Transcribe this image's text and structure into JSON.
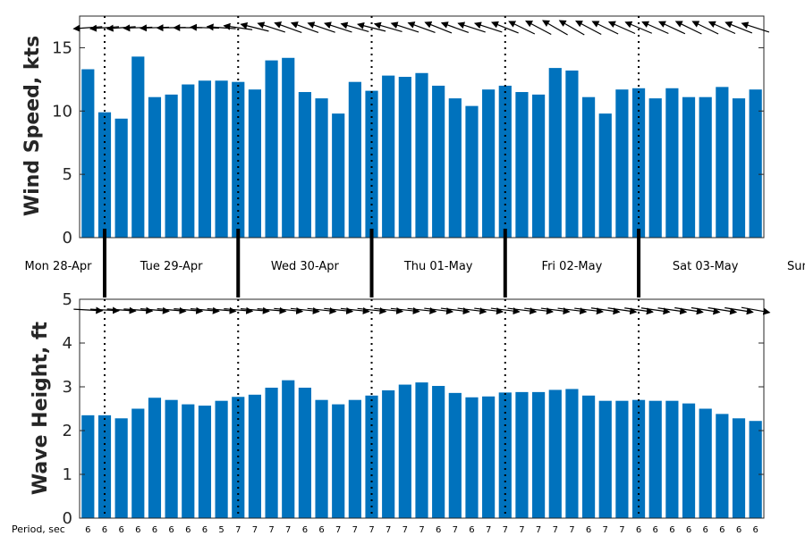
{
  "chart_data": [
    {
      "type": "bar",
      "ylabel": "Wind Speed, kts",
      "ylim": [
        0,
        17.5
      ],
      "yticks": [
        0,
        5,
        10,
        15
      ],
      "color": "#0072BD",
      "values": [
        13.3,
        9.9,
        9.4,
        14.3,
        11.1,
        11.3,
        12.1,
        12.4,
        12.4,
        12.3,
        11.7,
        14.0,
        14.2,
        11.5,
        11.0,
        9.8,
        12.3,
        11.6,
        12.8,
        12.7,
        13.0,
        12.0,
        11.0,
        10.4,
        11.7,
        12.0,
        11.5,
        11.3,
        13.4,
        13.2,
        11.1,
        9.8,
        11.7,
        11.8,
        11.0,
        11.8,
        11.1,
        11.1,
        11.9,
        11.0,
        11.7
      ],
      "direction_deg": [
        184,
        184,
        184,
        182,
        182,
        181,
        180,
        178,
        176,
        172,
        166,
        162,
        160,
        160,
        161,
        162,
        164,
        166,
        164,
        162,
        160,
        158,
        160,
        162,
        162,
        158,
        154,
        152,
        150,
        150,
        152,
        154,
        156,
        157,
        156,
        155,
        154,
        154,
        156,
        158,
        162
      ]
    },
    {
      "type": "bar",
      "ylabel": "Wave Height, ft",
      "ylim": [
        0,
        5
      ],
      "yticks": [
        0,
        1,
        2,
        3,
        4,
        5
      ],
      "color": "#0072BD",
      "values": [
        2.35,
        2.35,
        2.28,
        2.5,
        2.75,
        2.7,
        2.6,
        2.57,
        2.68,
        2.77,
        2.82,
        2.98,
        3.15,
        2.98,
        2.7,
        2.6,
        2.7,
        2.8,
        2.92,
        3.05,
        3.1,
        3.02,
        2.86,
        2.76,
        2.78,
        2.87,
        2.88,
        2.88,
        2.93,
        2.95,
        2.8,
        2.68,
        2.68,
        2.7,
        2.68,
        2.68,
        2.62,
        2.5,
        2.38,
        2.28,
        2.22
      ],
      "direction_deg": [
        -3,
        -3,
        -4,
        -4,
        -5,
        -5,
        -5,
        -5,
        -5,
        -5,
        -5,
        -5,
        -6,
        -6,
        -6,
        -6,
        -6,
        -6,
        -6,
        -6,
        -6,
        -7,
        -7,
        -7,
        -7,
        -7,
        -7,
        -7,
        -7,
        -7,
        -7,
        -8,
        -8,
        -8,
        -8,
        -8,
        -9,
        -9,
        -9,
        -9,
        -10
      ],
      "period_label": "Period, sec",
      "period_sec": [
        6,
        6,
        6,
        6,
        6,
        6,
        6,
        6,
        5,
        7,
        7,
        7,
        7,
        6,
        6,
        7,
        7,
        7,
        7,
        7,
        7,
        6,
        7,
        6,
        7,
        7,
        7,
        7,
        7,
        7,
        6,
        7,
        7,
        6,
        6,
        6,
        6,
        6,
        6,
        6,
        6
      ]
    }
  ],
  "days": [
    "Mon 28-Apr",
    "Tue 29-Apr",
    "Wed 30-Apr",
    "Thu 01-May",
    "Fri 02-May",
    "Sat 03-May",
    "Sun"
  ]
}
